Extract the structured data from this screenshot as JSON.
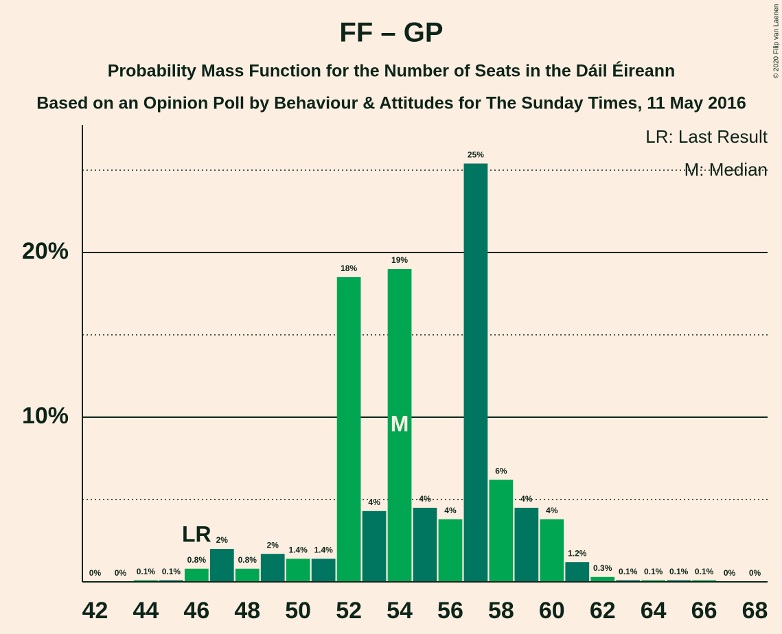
{
  "chart_data": {
    "type": "bar",
    "title": "FF – GP",
    "subtitle": "Probability Mass Function for the Number of Seats in the Dáil Éireann",
    "subtitle2": "Based on an Opinion Poll by Behaviour & Attitudes for The Sunday Times, 11 May 2016",
    "copyright": "© 2020 Filip van Laenen",
    "legend": [
      "LR: Last Result",
      "M: Median"
    ],
    "annotations": [
      {
        "x": 46,
        "text": "LR"
      },
      {
        "x": 54,
        "text": "M"
      }
    ],
    "x": [
      42,
      43,
      44,
      45,
      46,
      47,
      48,
      49,
      50,
      51,
      52,
      53,
      54,
      55,
      56,
      57,
      58,
      59,
      60,
      61,
      62,
      63,
      64,
      65,
      66,
      67,
      68
    ],
    "values": [
      0,
      0,
      0.1,
      0.1,
      0.8,
      2,
      0.8,
      1.7,
      1.4,
      1.4,
      18.5,
      4.3,
      19,
      4.5,
      3.8,
      25.4,
      6.2,
      4.5,
      3.8,
      1.2,
      0.3,
      0.1,
      0.1,
      0.1,
      0.1,
      0,
      0
    ],
    "value_labels": [
      "0%",
      "0%",
      "0.1%",
      "0.1%",
      "0.8%",
      "2%",
      "0.8%",
      "2%",
      "1.4%",
      "1.4%",
      "18%",
      "4%",
      "19%",
      "4%",
      "4%",
      "25%",
      "6%",
      "4%",
      "4%",
      "1.2%",
      "0.3%",
      "0.1%",
      "0.1%",
      "0.1%",
      "0.1%",
      "0%",
      "0%"
    ],
    "colors": [
      "#00a651",
      "#007560"
    ],
    "xlim": [
      41.5,
      68.5
    ],
    "xticks": [
      42,
      44,
      46,
      48,
      50,
      52,
      54,
      56,
      58,
      60,
      62,
      64,
      66,
      68
    ],
    "ylim": [
      0,
      27.75
    ],
    "yticks": [
      {
        "value": 10,
        "label": "10%"
      },
      {
        "value": 20,
        "label": "20%"
      }
    ],
    "minor_yticks": [
      5,
      15,
      25
    ],
    "grid": true
  }
}
